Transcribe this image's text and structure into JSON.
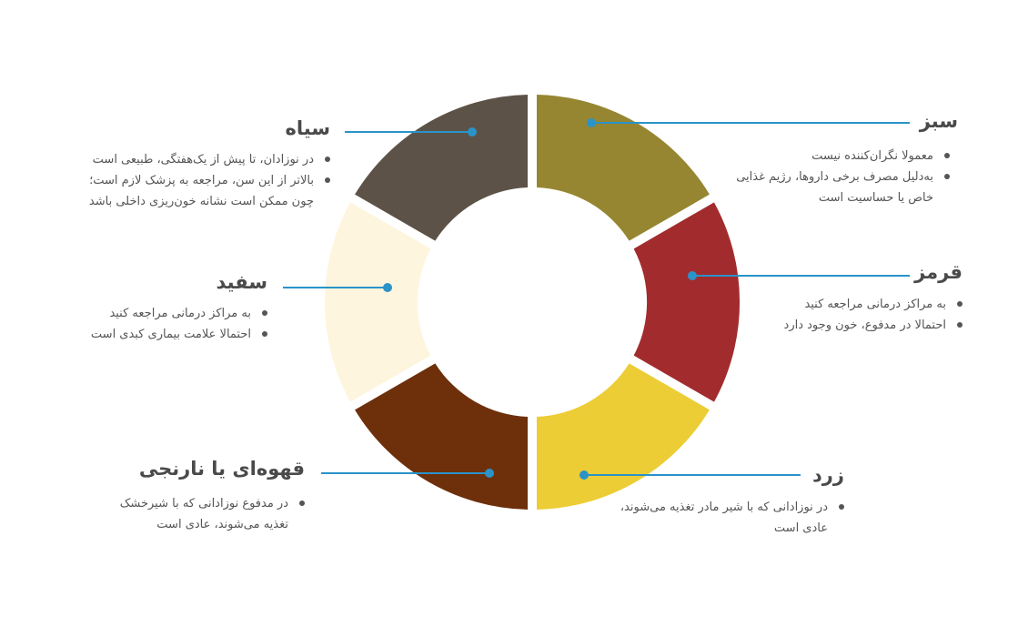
{
  "colors": {
    "connector": "#2a93c9",
    "green": "#968631",
    "red": "#a22c2d",
    "yellow": "#eccd35",
    "brown": "#6e2f0b",
    "white": "#fdf5dd",
    "black": "#5d5247"
  },
  "segments": [
    {
      "key": "green",
      "title": "سبز",
      "bullets": [
        "معمولا نگران‌کننده نیست",
        "به‌دلیل مصرف برخی داروها، رژیم غذایی خاص یا حساسیت است"
      ]
    },
    {
      "key": "red",
      "title": "قرمز",
      "bullets": [
        "به مراکز درمانی مراجعه کنید",
        "احتمالا در مدفوع، خون وجود دارد"
      ]
    },
    {
      "key": "yellow",
      "title": "زرد",
      "bullets": [
        "در نوزادانی که با شیر مادر تغذیه می‌شوند، عادی است"
      ]
    },
    {
      "key": "brown",
      "title": "قهوه‌ای یا نارنجی",
      "bullets": [
        "در مدفوع نوزادانی که با شیرخشک تغذیه می‌شوند، عادی است"
      ]
    },
    {
      "key": "white",
      "title": "سفید",
      "bullets": [
        "به مراکز درمانی مراجعه کنید",
        "احتمالا علامت بیماری کبدی است"
      ]
    },
    {
      "key": "black",
      "title": "سیاه",
      "bullets": [
        "در نوزادان، تا پیش از یک‌هفتگی، طبیعی است",
        "بالاتر از این سن، مراجعه به پزشک لازم است؛ چون ممکن است نشانه خون‌ریزی داخلی باشد"
      ]
    }
  ]
}
